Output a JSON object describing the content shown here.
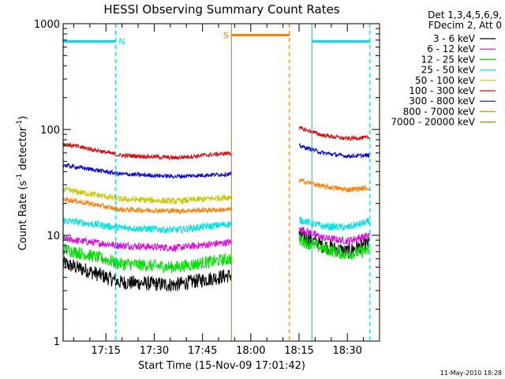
{
  "chart_data": {
    "type": "line",
    "title": "HESSI Observing Summary Count Rates",
    "xlabel": "Start Time (15-Nov-09 17:01:42)",
    "ylabel_main": "Count Rate (s",
    "ylabel_sup1": "-1",
    "ylabel_mid": " detector",
    "ylabel_sup2": "-1",
    "ylabel_end": ")",
    "y_scale": "log",
    "ylim": [
      1,
      1000
    ],
    "xlim": [
      "17:01:42",
      "18:40:00"
    ],
    "x_ticks": [
      "17:15",
      "17:30",
      "17:45",
      "18:00",
      "18:15",
      "18:30"
    ],
    "y_ticks": [
      "1",
      "10",
      "100",
      "1000"
    ],
    "footer": "11-May-2010 18:28",
    "legend": {
      "position": "top-right",
      "header1": "Det 1,3,4,5,6,9,",
      "header2": "FDecim 2, Att 0"
    },
    "series": [
      {
        "name": "3 - 6 keV",
        "color": "#000000",
        "a": [
          5.4,
          3.6,
          3.4,
          4.2
        ],
        "b": [
          10.0,
          8.0,
          7.0,
          8.5
        ],
        "noise": 0.07
      },
      {
        "name": "6 - 12 keV",
        "color": "#e000e0",
        "a": [
          9.2,
          8.0,
          7.6,
          8.6
        ],
        "b": [
          11.5,
          9.5,
          8.8,
          10.0
        ],
        "noise": 0.035
      },
      {
        "name": "12 - 25 keV",
        "color": "#00e000",
        "a": [
          7.4,
          5.4,
          5.0,
          6.0
        ],
        "b": [
          9.0,
          7.5,
          6.6,
          7.2
        ],
        "noise": 0.06
      },
      {
        "name": "25 - 50 keV",
        "color": "#00e0e0",
        "a": [
          13.8,
          11.8,
          11.2,
          12.8
        ],
        "b": [
          14.0,
          12.2,
          11.8,
          13.5
        ],
        "noise": 0.035
      },
      {
        "name": "50 - 100 keV",
        "color": "#c8c800",
        "a": [
          27,
          22,
          21,
          23
        ],
        "b": [
          0,
          0,
          0,
          0
        ],
        "noise": 0.03
      },
      {
        "name": "100 - 300 keV",
        "color": "#e00000",
        "a": [
          73,
          57,
          54,
          60
        ],
        "b": [
          103,
          88,
          82,
          84
        ],
        "noise": 0.02
      },
      {
        "name": "300 - 800 keV",
        "color": "#0000e0",
        "a": [
          46,
          38,
          36,
          38
        ],
        "b": [
          70,
          60,
          56,
          57
        ],
        "noise": 0.02
      },
      {
        "name": "800 - 7000 keV",
        "color": "#ff8000",
        "a": [
          22,
          17.5,
          17,
          17.5
        ],
        "b": [
          33,
          29,
          27,
          28
        ],
        "noise": 0.025
      },
      {
        "name": "7000 - 20000 keV",
        "color": "#b07800",
        "a": [
          0,
          0,
          0,
          0
        ],
        "b": [
          0,
          0,
          0,
          0
        ],
        "noise": 0
      }
    ],
    "flags": [
      {
        "label": "N",
        "color": "#00d8ff",
        "start": "17:01:42",
        "end": "17:18:00",
        "value": 680
      },
      {
        "label": "S",
        "color": "#ff8000",
        "start": "17:54:00",
        "end": "18:12:00",
        "value": 780
      },
      {
        "label": "",
        "color": "#00d8ff",
        "start": "18:19:00",
        "end": "18:37:00",
        "value": 680
      }
    ],
    "markers": [
      {
        "time": "17:01:42",
        "color": "#00d8ff",
        "style": "solid"
      },
      {
        "time": "17:18:00",
        "color": "#00d8ff",
        "style": "dashed"
      },
      {
        "time": "17:54:00",
        "color": "#ff8000",
        "style": "solid"
      },
      {
        "time": "18:12:00",
        "color": "#ff8000",
        "style": "dashed"
      },
      {
        "time": "18:19:00",
        "color": "#00d8ff",
        "style": "solid"
      },
      {
        "time": "18:37:00",
        "color": "#00d8ff",
        "style": "dashed"
      }
    ],
    "segments": [
      [
        "17:01:42",
        "17:54:00"
      ],
      [
        "18:15:00",
        "18:37:00"
      ]
    ]
  }
}
